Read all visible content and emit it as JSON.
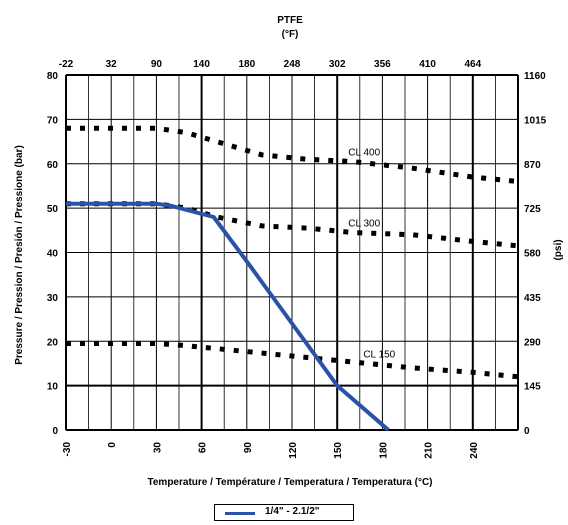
{
  "chart_data": {
    "type": "line",
    "title": "PTFE",
    "top_axis": {
      "unit": "(°F)",
      "ticks": [
        "-22",
        "32",
        "90",
        "140",
        "180",
        "248",
        "302",
        "356",
        "410",
        "464"
      ]
    },
    "bottom_axis": {
      "label": "Temperature / Température / Temperatura / Temperatura (°C)",
      "ticks": [
        "-30",
        "0",
        "30",
        "60",
        "90",
        "120",
        "150",
        "180",
        "210",
        "240"
      ],
      "xlim": [
        -30,
        270
      ]
    },
    "left_axis": {
      "label": "Pressure / Pression / Presión / Pressione (bar)",
      "ticks": [
        "0",
        "10",
        "20",
        "30",
        "40",
        "50",
        "60",
        "70",
        "80"
      ],
      "ylim": [
        0,
        80
      ]
    },
    "right_axis": {
      "label": "(psi)",
      "ticks": [
        "0",
        "145",
        "290",
        "435",
        "580",
        "725",
        "870",
        "1015",
        "1160"
      ]
    },
    "grid": true,
    "series": [
      {
        "name": "1/4\" - 2.1/2\"",
        "style": "solid",
        "color": "#2a52a8",
        "x": [
          -30,
          0,
          30,
          40,
          68,
          90,
          120,
          150,
          184
        ],
        "y": [
          51,
          51,
          51,
          50.5,
          48,
          38,
          24,
          10,
          0
        ]
      }
    ],
    "reference_curves": [
      {
        "label": "CL 400",
        "style": "dotted",
        "color": "#000000",
        "x": [
          -30,
          0,
          30,
          50,
          80,
          100,
          130,
          160,
          200,
          240,
          270
        ],
        "y": [
          68,
          68,
          68,
          67,
          64,
          62,
          61,
          60.5,
          59,
          57,
          56
        ]
      },
      {
        "label": "CL 300",
        "style": "dotted",
        "color": "#000000",
        "x": [
          -30,
          0,
          30,
          50,
          70,
          100,
          130,
          160,
          200,
          240,
          270
        ],
        "y": [
          51,
          51,
          51,
          50,
          48,
          46,
          45.5,
          44.5,
          44,
          42.5,
          41.5
        ]
      },
      {
        "label": "CL 150",
        "style": "dotted",
        "color": "#000000",
        "x": [
          -30,
          0,
          30,
          50,
          80,
          110,
          140,
          170,
          200,
          240,
          270
        ],
        "y": [
          19.5,
          19.5,
          19.5,
          19,
          18,
          17,
          16,
          15,
          14,
          13,
          12
        ]
      }
    ]
  },
  "legend": {
    "entry": "1/4\" - 2.1/2\""
  }
}
